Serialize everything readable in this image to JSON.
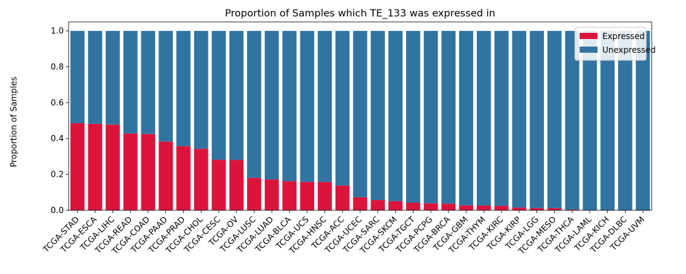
{
  "chart_data": {
    "type": "bar",
    "stacked": true,
    "title": "Proportion of Samples which TE_133 was expressed in",
    "xlabel": "",
    "ylabel": "Proportion of Samples",
    "ylim": [
      0,
      1.05
    ],
    "yticks": [
      "0.0",
      "0.2",
      "0.4",
      "0.6",
      "0.8",
      "1.0"
    ],
    "grid": false,
    "legend_position": "top-right",
    "colors": {
      "expressed": "#dc143c",
      "unexpressed": "#3274a1"
    },
    "categories": [
      "TCGA-STAD",
      "TCGA-ESCA",
      "TCGA-LIHC",
      "TCGA-READ",
      "TCGA-COAD",
      "TCGA-PAAD",
      "TCGA-PRAD",
      "TCGA-CHOL",
      "TCGA-CESC",
      "TCGA-OV",
      "TCGA-LUSC",
      "TCGA-LUAD",
      "TCGA-BLCA",
      "TCGA-UCS",
      "TCGA-HNSC",
      "TCGA-ACC",
      "TCGA-UCEC",
      "TCGA-SARC",
      "TCGA-SKCM",
      "TCGA-TGCT",
      "TCGA-PCPG",
      "TCGA-BRCA",
      "TCGA-GBM",
      "TCGA-THYM",
      "TCGA-KIRC",
      "TCGA-KIRP",
      "TCGA-LGG",
      "TCGA-MESO",
      "TCGA-THCA",
      "TCGA-LAML",
      "TCGA-KICH",
      "TCGA-DLBC",
      "TCGA-UVM"
    ],
    "series": [
      {
        "name": "Expressed",
        "values": [
          0.485,
          0.482,
          0.478,
          0.428,
          0.425,
          0.383,
          0.358,
          0.343,
          0.282,
          0.281,
          0.181,
          0.172,
          0.162,
          0.158,
          0.158,
          0.138,
          0.073,
          0.057,
          0.051,
          0.042,
          0.039,
          0.037,
          0.028,
          0.027,
          0.025,
          0.015,
          0.012,
          0.012,
          0.004,
          0.0,
          0.0,
          0.0,
          0.0
        ]
      },
      {
        "name": "Unexpressed",
        "values": [
          0.515,
          0.518,
          0.522,
          0.572,
          0.575,
          0.617,
          0.642,
          0.657,
          0.718,
          0.719,
          0.819,
          0.828,
          0.838,
          0.842,
          0.842,
          0.862,
          0.927,
          0.943,
          0.949,
          0.958,
          0.961,
          0.963,
          0.972,
          0.973,
          0.975,
          0.985,
          0.988,
          0.988,
          0.996,
          1.0,
          1.0,
          1.0,
          1.0
        ]
      }
    ]
  }
}
